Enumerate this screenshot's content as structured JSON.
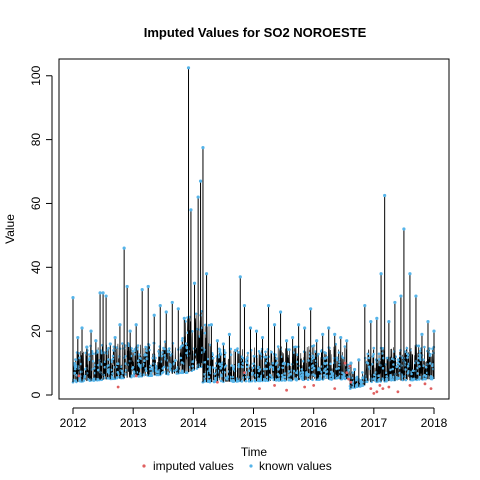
{
  "chart_data": {
    "type": "line",
    "title": "Imputed Values for  SO2 NOROESTE",
    "xlabel": "Time",
    "ylabel": "Value",
    "xlim": [
      2012.0,
      2018.0
    ],
    "ylim": [
      0,
      104
    ],
    "x_ticks": [
      2012,
      2013,
      2014,
      2015,
      2016,
      2017,
      2018
    ],
    "y_ticks": [
      0,
      20,
      40,
      60,
      80,
      100
    ],
    "grid": false,
    "legend_placement": "bottom",
    "colors": {
      "line": "#000000",
      "known": "#56B4E9",
      "imputed": "#E06060",
      "frame": "#000000"
    },
    "series": [
      {
        "name": "known values",
        "marker_color": "#56B4E9",
        "x": [
          2012.0,
          2012.08,
          2012.15,
          2012.23,
          2012.3,
          2012.38,
          2012.45,
          2012.5,
          2012.55,
          2012.62,
          2012.7,
          2012.78,
          2012.85,
          2012.9,
          2012.95,
          2013.05,
          2013.15,
          2013.25,
          2013.35,
          2013.45,
          2013.55,
          2013.65,
          2013.75,
          2013.85,
          2013.92,
          2013.96,
          2014.02,
          2014.08,
          2014.12,
          2014.16,
          2014.22,
          2014.3,
          2014.4,
          2014.5,
          2014.6,
          2014.7,
          2014.78,
          2014.85,
          2014.95,
          2015.05,
          2015.15,
          2015.25,
          2015.35,
          2015.45,
          2015.55,
          2015.65,
          2015.75,
          2015.85,
          2015.95,
          2016.05,
          2016.15,
          2016.25,
          2016.35,
          2016.45,
          2016.55,
          2016.62,
          2016.68,
          2016.75,
          2016.85,
          2016.95,
          2017.05,
          2017.12,
          2017.18,
          2017.25,
          2017.35,
          2017.45,
          2017.5,
          2017.6,
          2017.7,
          2017.8,
          2017.9,
          2018.0
        ],
        "y": [
          30.5,
          18,
          21,
          15,
          20,
          17,
          32,
          32,
          31,
          16,
          18,
          22,
          46,
          34,
          20,
          22,
          33,
          34,
          25,
          28,
          26,
          29,
          27,
          24,
          102.5,
          58,
          35,
          62,
          67,
          77.5,
          38,
          22,
          17,
          16,
          19,
          14,
          37,
          28,
          21,
          20,
          18,
          28,
          22,
          26,
          17,
          18,
          22,
          21,
          27,
          17,
          19,
          21,
          19,
          18,
          17,
          10,
          8,
          11,
          28,
          23,
          24,
          38,
          62.5,
          23,
          29,
          31,
          52,
          38,
          31,
          19,
          23,
          20
        ],
        "baseline_segments": [
          {
            "x": [
              2012.0,
              2013.9
            ],
            "y": [
              4,
              7
            ]
          },
          {
            "x": [
              2013.9,
              2014.15
            ],
            "y": [
              7,
              9
            ]
          },
          {
            "x": [
              2014.15,
              2016.6
            ],
            "y": [
              4,
              5
            ]
          },
          {
            "x": [
              2016.6,
              2016.85
            ],
            "y": [
              2,
              3
            ]
          },
          {
            "x": [
              2016.85,
              2018.0
            ],
            "y": [
              4,
              5
            ]
          }
        ]
      },
      {
        "name": "imputed values",
        "marker_color": "#E06060",
        "x": [
          2012.1,
          2012.75,
          2013.05,
          2014.4,
          2014.85,
          2015.1,
          2015.35,
          2015.55,
          2015.85,
          2016.0,
          2016.35,
          2016.52,
          2016.55,
          2016.58,
          2016.6,
          2016.62,
          2016.95,
          2017.0,
          2017.05,
          2017.1,
          2017.15,
          2017.25,
          2017.4,
          2017.6,
          2017.85,
          2017.95
        ],
        "y": [
          6,
          2.5,
          6,
          4,
          7,
          2,
          3,
          1.5,
          2.5,
          3,
          2,
          10,
          7,
          5,
          9,
          4,
          2,
          0.5,
          1,
          3,
          2,
          2.5,
          1,
          3,
          3.5,
          2
        ]
      }
    ],
    "legend": [
      {
        "label": "imputed values",
        "color": "#E06060"
      },
      {
        "label": "known values",
        "color": "#56B4E9"
      }
    ]
  }
}
